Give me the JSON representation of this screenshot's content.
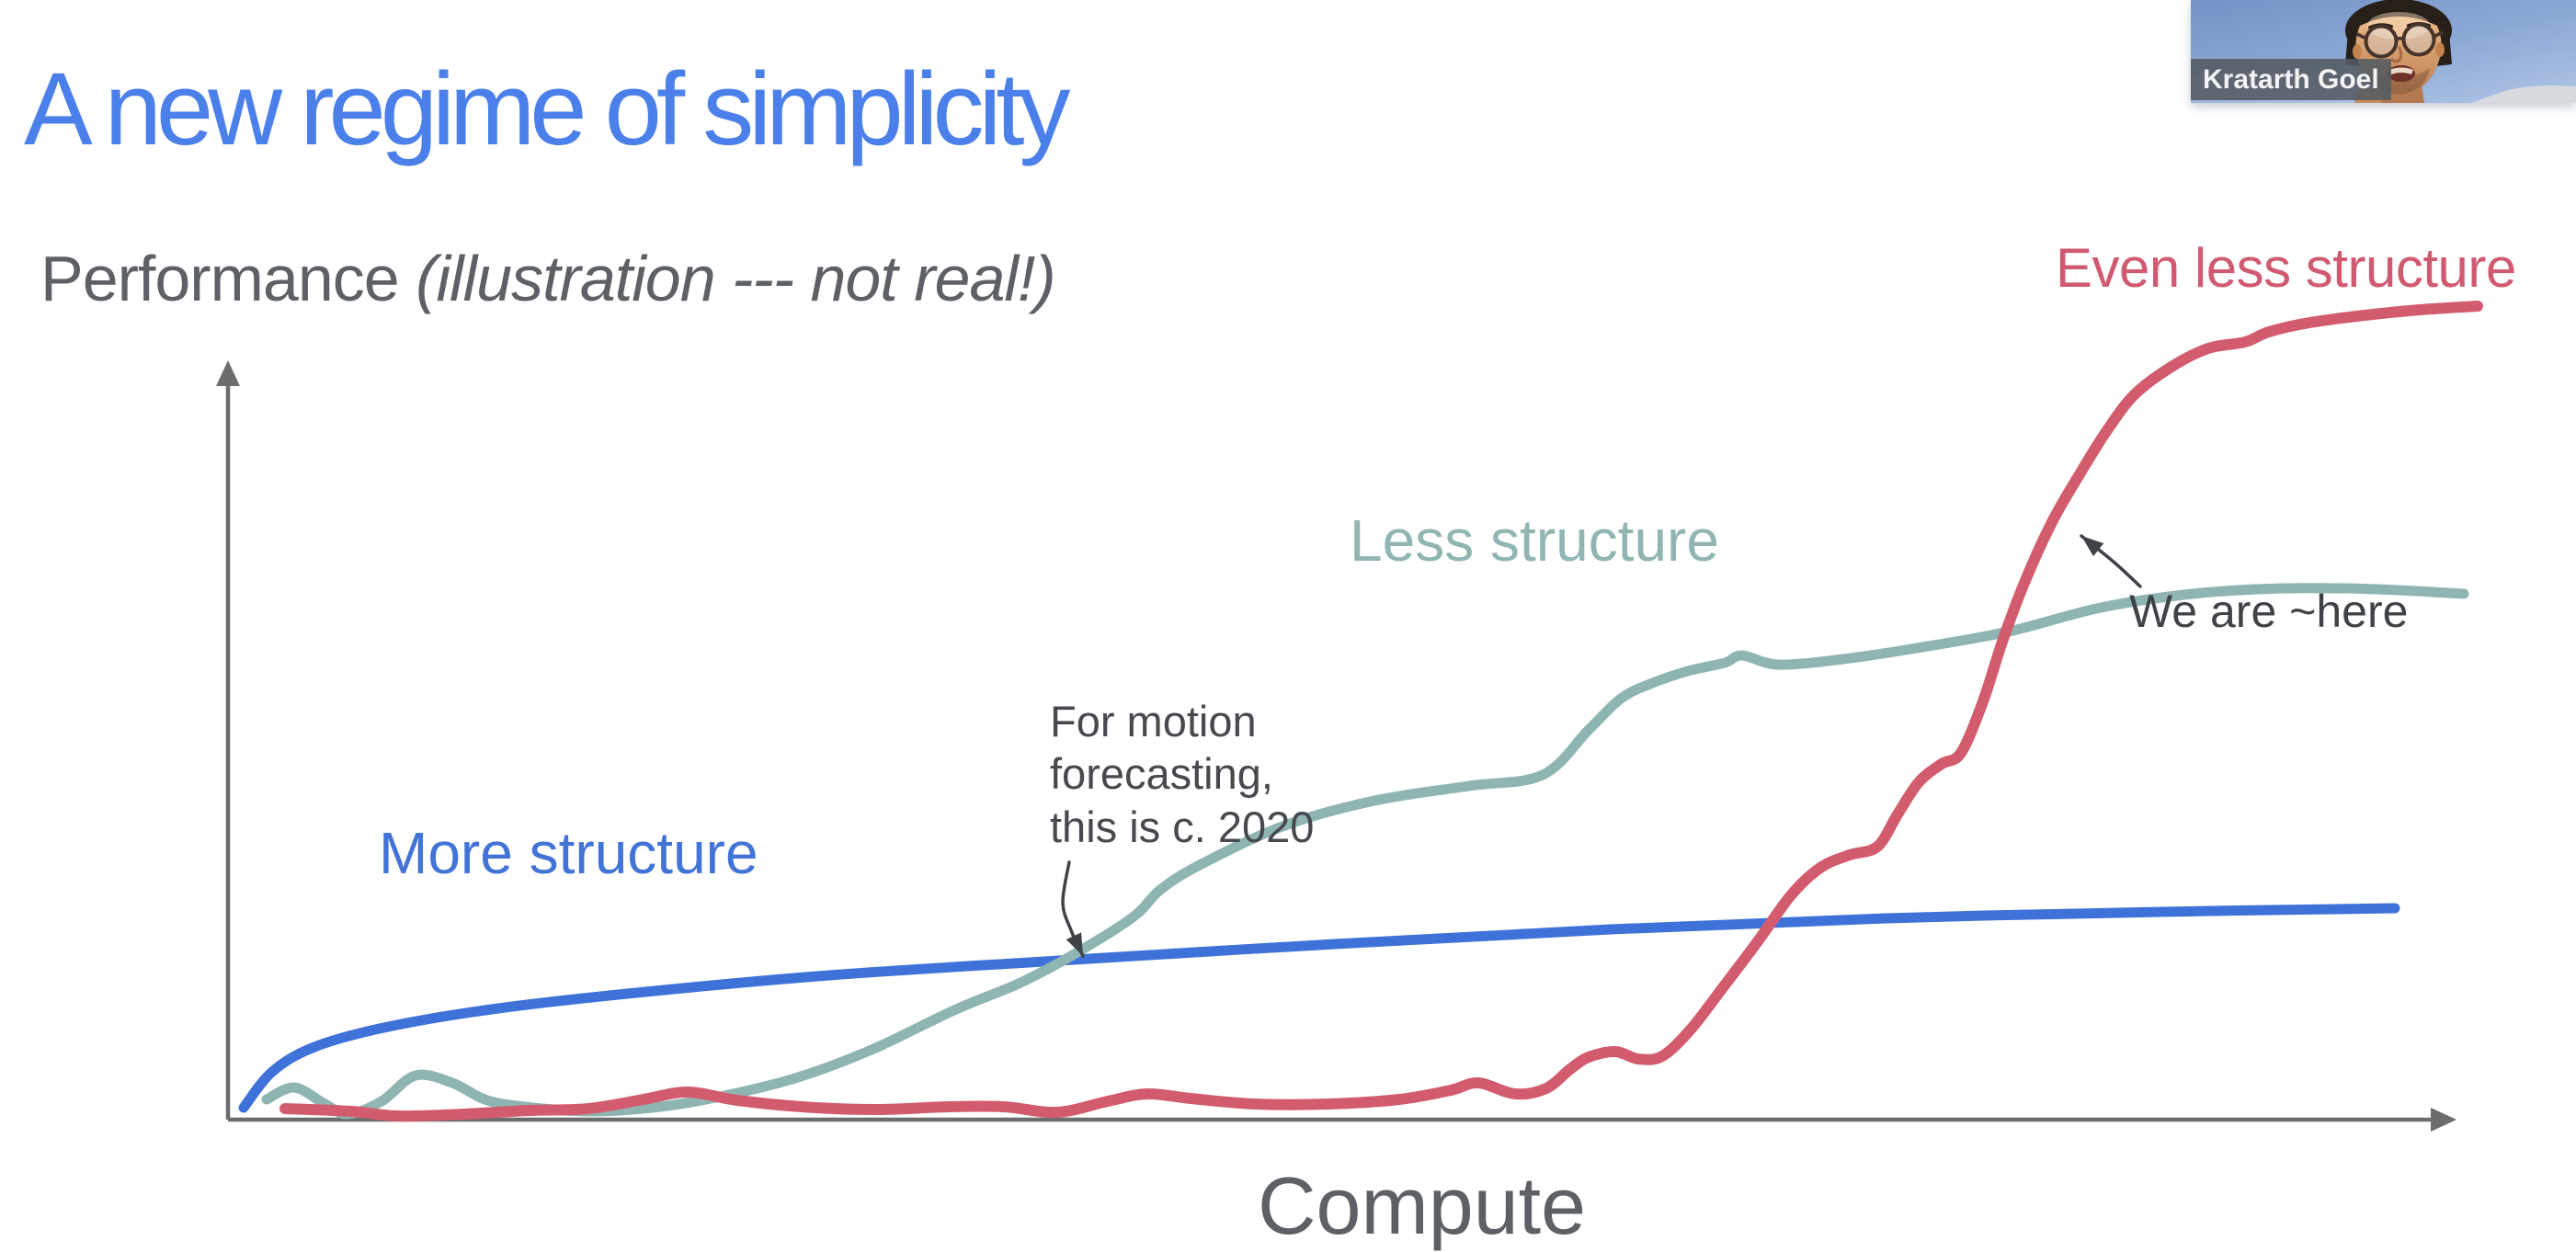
{
  "title": {
    "text": "A new regime of simplicity",
    "color": "#4b80ea"
  },
  "axis_labels": {
    "y_regular": "Performance ",
    "y_italic": "(illustration --- not real!)",
    "x": "Compute"
  },
  "curve_labels": {
    "more": {
      "text": "More structure",
      "color": "#4273d6"
    },
    "less": {
      "text": "Less structure",
      "color": "#90b5b2"
    },
    "even_less": {
      "text": "Even less structure",
      "color": "#d05a70"
    }
  },
  "annotations": {
    "motion": {
      "line1": "For motion",
      "line2": "forecasting,",
      "line3": "this is c. 2020",
      "color": "#46494d"
    },
    "here": {
      "text": "We are ~here",
      "color": "#3f4347"
    }
  },
  "video_overlay": {
    "participant_name": "Kratarth Goel"
  },
  "chart_data": {
    "type": "line",
    "title": "A new regime of simplicity",
    "xlabel": "Compute",
    "ylabel": "Performance (illustration --- not real!)",
    "note": "Conceptual sketch: no numeric ticks or gridlines; axes are arrows. Points are page-pixel coordinates (y decreases upward).",
    "legend": "inline colored labels next to each curve",
    "axis_color": "#6a6c6e",
    "annotation_arrow_color": "#3f4246",
    "plot": {
      "y_axis_x": 248,
      "x_axis_y": 1218,
      "x_end": 2672,
      "y_top": 392
    },
    "series": [
      {
        "name": "More structure",
        "color": "#3f72d9",
        "width": 11,
        "points": [
          [
            265,
            1205
          ],
          [
            296,
            1166
          ],
          [
            342,
            1139
          ],
          [
            422,
            1117
          ],
          [
            542,
            1097
          ],
          [
            702,
            1079
          ],
          [
            902,
            1061
          ],
          [
            1152,
            1045
          ],
          [
            1452,
            1027
          ],
          [
            1752,
            1011
          ],
          [
            2052,
            999
          ],
          [
            2352,
            992
          ],
          [
            2605,
            988
          ]
        ]
      },
      {
        "name": "Less structure",
        "color": "#8fb5b2",
        "width": 11,
        "points": [
          [
            290,
            1196
          ],
          [
            320,
            1183
          ],
          [
            352,
            1200
          ],
          [
            378,
            1212
          ],
          [
            415,
            1198
          ],
          [
            452,
            1170
          ],
          [
            492,
            1178
          ],
          [
            530,
            1197
          ],
          [
            580,
            1205
          ],
          [
            645,
            1209
          ],
          [
            718,
            1204
          ],
          [
            788,
            1192
          ],
          [
            868,
            1172
          ],
          [
            948,
            1142
          ],
          [
            1040,
            1098
          ],
          [
            1108,
            1070
          ],
          [
            1165,
            1040
          ],
          [
            1232,
            998
          ],
          [
            1262,
            968
          ],
          [
            1305,
            941
          ],
          [
            1395,
            899
          ],
          [
            1495,
            871
          ],
          [
            1598,
            855
          ],
          [
            1678,
            843
          ],
          [
            1728,
            794
          ],
          [
            1763,
            760
          ],
          [
            1795,
            744
          ],
          [
            1836,
            730
          ],
          [
            1876,
            721
          ],
          [
            1895,
            713
          ],
          [
            1934,
            723
          ],
          [
            2005,
            717
          ],
          [
            2085,
            705
          ],
          [
            2185,
            687
          ],
          [
            2285,
            661
          ],
          [
            2385,
            646
          ],
          [
            2485,
            640
          ],
          [
            2585,
            641
          ],
          [
            2680,
            646
          ]
        ]
      },
      {
        "name": "Even less structure",
        "color": "#d25c6e",
        "width": 12,
        "points": [
          [
            310,
            1206
          ],
          [
            382,
            1209
          ],
          [
            432,
            1214
          ],
          [
            505,
            1212
          ],
          [
            575,
            1208
          ],
          [
            640,
            1206
          ],
          [
            700,
            1196
          ],
          [
            748,
            1188
          ],
          [
            802,
            1197
          ],
          [
            872,
            1204
          ],
          [
            952,
            1207
          ],
          [
            1032,
            1204
          ],
          [
            1092,
            1204
          ],
          [
            1150,
            1210
          ],
          [
            1205,
            1198
          ],
          [
            1248,
            1190
          ],
          [
            1295,
            1195
          ],
          [
            1365,
            1201
          ],
          [
            1445,
            1201
          ],
          [
            1522,
            1196
          ],
          [
            1578,
            1186
          ],
          [
            1608,
            1178
          ],
          [
            1648,
            1190
          ],
          [
            1682,
            1184
          ],
          [
            1708,
            1163
          ],
          [
            1728,
            1150
          ],
          [
            1757,
            1144
          ],
          [
            1782,
            1152
          ],
          [
            1808,
            1149
          ],
          [
            1838,
            1121
          ],
          [
            1872,
            1077
          ],
          [
            1912,
            1024
          ],
          [
            1948,
            974
          ],
          [
            1980,
            944
          ],
          [
            2012,
            930
          ],
          [
            2042,
            921
          ],
          [
            2064,
            886
          ],
          [
            2087,
            851
          ],
          [
            2112,
            831
          ],
          [
            2133,
            819
          ],
          [
            2157,
            763
          ],
          [
            2178,
            698
          ],
          [
            2202,
            634
          ],
          [
            2232,
            568
          ],
          [
            2262,
            516
          ],
          [
            2292,
            468
          ],
          [
            2322,
            429
          ],
          [
            2362,
            399
          ],
          [
            2402,
            379
          ],
          [
            2442,
            372
          ],
          [
            2468,
            361
          ],
          [
            2512,
            351
          ],
          [
            2572,
            343
          ],
          [
            2632,
            337
          ],
          [
            2695,
            333
          ]
        ]
      }
    ],
    "annotations": [
      {
        "label": "For motion forecasting, this is c. 2020",
        "arrow_points": [
          [
            1163,
            938
          ],
          [
            1156,
            982
          ],
          [
            1165,
            1012
          ],
          [
            1178,
            1040
          ]
        ]
      },
      {
        "label": "We are ~here",
        "arrow_points": [
          [
            2328,
            638
          ],
          [
            2300,
            612
          ],
          [
            2264,
            583
          ]
        ]
      }
    ]
  }
}
